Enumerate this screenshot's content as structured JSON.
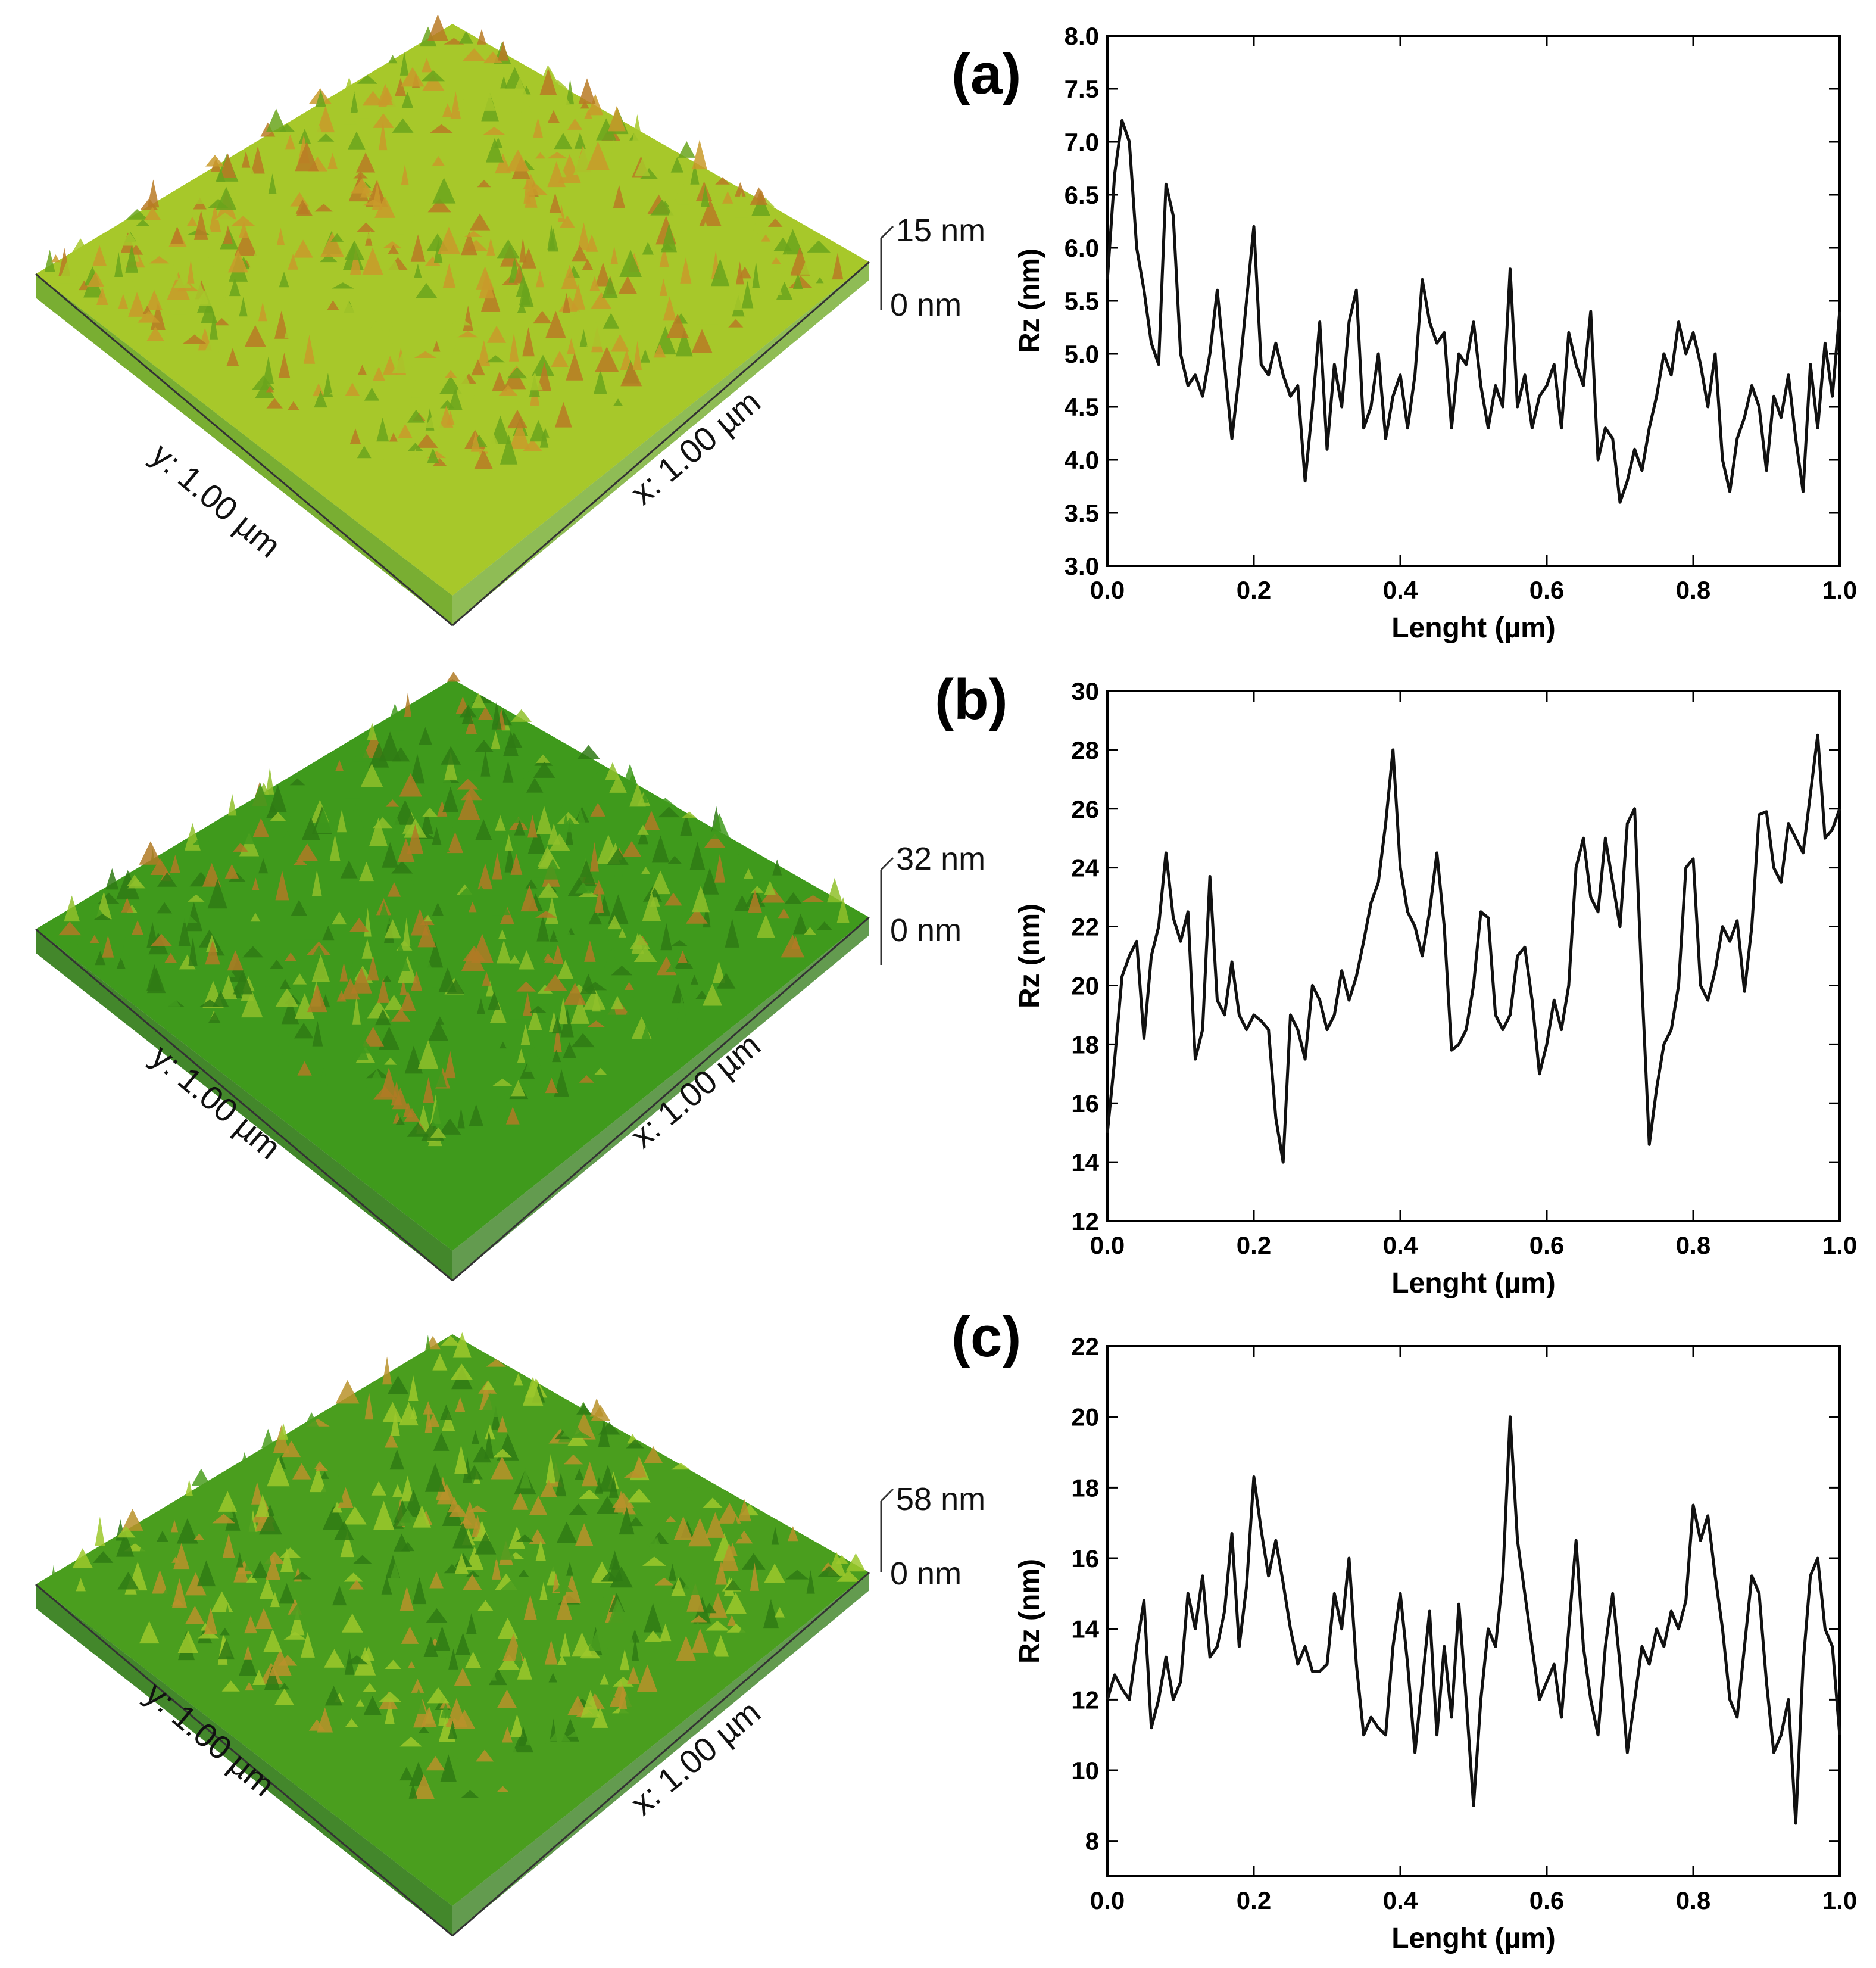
{
  "panels": [
    {
      "label": "(a)",
      "surface": {
        "z_max": "15 nm",
        "z_min": "0 nm",
        "y_label": "y: 1.00 µm",
        "x_label": "x: 1.00 µm",
        "palette": [
          "#6aa51c",
          "#a7c82a",
          "#c99a2a",
          "#b87a24"
        ]
      },
      "chart_data": {
        "type": "line",
        "xlabel": "Lenght (µm)",
        "ylabel": "Rz (nm)",
        "xlim": [
          0.0,
          1.0
        ],
        "ylim": [
          3.0,
          8.0
        ],
        "xticks": [
          "0.0",
          "0.2",
          "0.4",
          "0.6",
          "0.8",
          "1.0"
        ],
        "yticks": [
          "3.0",
          "3.5",
          "4.0",
          "4.5",
          "5.0",
          "5.5",
          "6.0",
          "6.5",
          "7.0",
          "7.5",
          "8.0"
        ],
        "x": [
          0.0,
          0.01,
          0.02,
          0.03,
          0.04,
          0.05,
          0.06,
          0.07,
          0.08,
          0.09,
          0.1,
          0.11,
          0.12,
          0.13,
          0.14,
          0.15,
          0.16,
          0.17,
          0.18,
          0.19,
          0.2,
          0.21,
          0.22,
          0.23,
          0.24,
          0.25,
          0.26,
          0.27,
          0.28,
          0.29,
          0.3,
          0.31,
          0.32,
          0.33,
          0.34,
          0.35,
          0.36,
          0.37,
          0.38,
          0.39,
          0.4,
          0.41,
          0.42,
          0.43,
          0.44,
          0.45,
          0.46,
          0.47,
          0.48,
          0.49,
          0.5,
          0.51,
          0.52,
          0.53,
          0.54,
          0.55,
          0.56,
          0.57,
          0.58,
          0.59,
          0.6,
          0.61,
          0.62,
          0.63,
          0.64,
          0.65,
          0.66,
          0.67,
          0.68,
          0.69,
          0.7,
          0.71,
          0.72,
          0.73,
          0.74,
          0.75,
          0.76,
          0.77,
          0.78,
          0.79,
          0.8,
          0.81,
          0.82,
          0.83,
          0.84,
          0.85,
          0.86,
          0.87,
          0.88,
          0.89,
          0.9,
          0.91,
          0.92,
          0.93,
          0.94,
          0.95,
          0.96,
          0.97,
          0.98,
          0.99,
          1.0
        ],
        "values": [
          5.7,
          6.7,
          7.2,
          7.0,
          6.0,
          5.6,
          5.1,
          4.9,
          6.6,
          6.3,
          5.0,
          4.7,
          4.8,
          4.6,
          5.0,
          5.6,
          4.9,
          4.2,
          4.8,
          5.5,
          6.2,
          4.9,
          4.8,
          5.1,
          4.8,
          4.6,
          4.7,
          3.8,
          4.5,
          5.3,
          4.1,
          4.9,
          4.5,
          5.3,
          5.6,
          4.3,
          4.5,
          5.0,
          4.2,
          4.6,
          4.8,
          4.3,
          4.8,
          5.7,
          5.3,
          5.1,
          5.2,
          4.3,
          5.0,
          4.9,
          5.3,
          4.7,
          4.3,
          4.7,
          4.5,
          5.8,
          4.5,
          4.8,
          4.3,
          4.6,
          4.7,
          4.9,
          4.3,
          5.2,
          4.9,
          4.7,
          5.4,
          4.0,
          4.3,
          4.2,
          3.6,
          3.8,
          4.1,
          3.9,
          4.3,
          4.6,
          5.0,
          4.8,
          5.3,
          5.0,
          5.2,
          4.9,
          4.5,
          5.0,
          4.0,
          3.7,
          4.2,
          4.4,
          4.7,
          4.5,
          3.9,
          4.6,
          4.4,
          4.8,
          4.2,
          3.7,
          4.9,
          4.3,
          5.1,
          4.6,
          5.4
        ]
      }
    },
    {
      "label": "(b)",
      "surface": {
        "z_max": "32 nm",
        "z_min": "0 nm",
        "y_label": "y: 1.00 µm",
        "x_label": "x: 1.00 µm",
        "palette": [
          "#2f7a14",
          "#3f9a1c",
          "#8fbf2a",
          "#b07a24"
        ]
      },
      "chart_data": {
        "type": "line",
        "xlabel": "Lenght (µm)",
        "ylabel": "Rz (nm)",
        "xlim": [
          0.0,
          1.0
        ],
        "ylim": [
          12,
          30
        ],
        "xticks": [
          "0.0",
          "0.2",
          "0.4",
          "0.6",
          "0.8",
          "1.0"
        ],
        "yticks": [
          "12",
          "14",
          "16",
          "18",
          "20",
          "22",
          "24",
          "26",
          "28",
          "30"
        ],
        "x": [
          0.0,
          0.01,
          0.02,
          0.03,
          0.04,
          0.05,
          0.06,
          0.07,
          0.08,
          0.09,
          0.1,
          0.11,
          0.12,
          0.13,
          0.14,
          0.15,
          0.16,
          0.17,
          0.18,
          0.19,
          0.2,
          0.21,
          0.22,
          0.23,
          0.24,
          0.25,
          0.26,
          0.27,
          0.28,
          0.29,
          0.3,
          0.31,
          0.32,
          0.33,
          0.34,
          0.35,
          0.36,
          0.37,
          0.38,
          0.39,
          0.4,
          0.41,
          0.42,
          0.43,
          0.44,
          0.45,
          0.46,
          0.47,
          0.48,
          0.49,
          0.5,
          0.51,
          0.52,
          0.53,
          0.54,
          0.55,
          0.56,
          0.57,
          0.58,
          0.59,
          0.6,
          0.61,
          0.62,
          0.63,
          0.64,
          0.65,
          0.66,
          0.67,
          0.68,
          0.69,
          0.7,
          0.71,
          0.72,
          0.73,
          0.74,
          0.75,
          0.76,
          0.77,
          0.78,
          0.79,
          0.8,
          0.81,
          0.82,
          0.83,
          0.84,
          0.85,
          0.86,
          0.87,
          0.88,
          0.89,
          0.9,
          0.91,
          0.92,
          0.93,
          0.94,
          0.95,
          0.96,
          0.97,
          0.98,
          0.99,
          1.0
        ],
        "values": [
          15.0,
          17.5,
          20.3,
          21.0,
          21.5,
          18.2,
          21.0,
          22.0,
          24.5,
          22.3,
          21.5,
          22.5,
          17.5,
          18.5,
          23.7,
          19.5,
          19.0,
          20.8,
          19.0,
          18.5,
          19.0,
          18.8,
          18.5,
          15.5,
          14.0,
          19.0,
          18.5,
          17.5,
          20.0,
          19.5,
          18.5,
          19.0,
          20.5,
          19.5,
          20.3,
          21.5,
          22.8,
          23.5,
          25.5,
          28.0,
          24.0,
          22.5,
          22.0,
          21.0,
          22.5,
          24.5,
          22.0,
          17.8,
          18.0,
          18.5,
          20.0,
          22.5,
          22.3,
          19.0,
          18.5,
          19.0,
          21.0,
          21.3,
          19.5,
          17.0,
          18.0,
          19.5,
          18.5,
          20.0,
          24.0,
          25.0,
          23.0,
          22.5,
          25.0,
          23.5,
          22.0,
          25.5,
          26.0,
          20.0,
          14.6,
          16.5,
          18.0,
          18.5,
          20.0,
          24.0,
          24.3,
          20.0,
          19.5,
          20.5,
          22.0,
          21.5,
          22.2,
          19.8,
          22.0,
          25.8,
          25.9,
          24.0,
          23.5,
          25.5,
          25.0,
          24.5,
          26.5,
          28.5,
          25.0,
          25.3,
          26.0
        ]
      }
    },
    {
      "label": "(c)",
      "surface": {
        "z_max": "58 nm",
        "z_min": "0 nm",
        "y_label": "y: 1.00 µm",
        "x_label": "x: 1.00 µm",
        "palette": [
          "#2f7a14",
          "#4a9e1e",
          "#9cc82c",
          "#b8922a"
        ]
      },
      "chart_data": {
        "type": "line",
        "xlabel": "Lenght (µm)",
        "ylabel": "Rz (nm)",
        "xlim": [
          0.0,
          1.0
        ],
        "ylim": [
          7,
          22
        ],
        "xticks": [
          "0.0",
          "0.2",
          "0.4",
          "0.6",
          "0.8",
          "1.0"
        ],
        "yticks": [
          "8",
          "10",
          "12",
          "14",
          "16",
          "18",
          "20",
          "22"
        ],
        "x": [
          0.0,
          0.01,
          0.02,
          0.03,
          0.04,
          0.05,
          0.06,
          0.07,
          0.08,
          0.09,
          0.1,
          0.11,
          0.12,
          0.13,
          0.14,
          0.15,
          0.16,
          0.17,
          0.18,
          0.19,
          0.2,
          0.21,
          0.22,
          0.23,
          0.24,
          0.25,
          0.26,
          0.27,
          0.28,
          0.29,
          0.3,
          0.31,
          0.32,
          0.33,
          0.34,
          0.35,
          0.36,
          0.37,
          0.38,
          0.39,
          0.4,
          0.41,
          0.42,
          0.43,
          0.44,
          0.45,
          0.46,
          0.47,
          0.48,
          0.49,
          0.5,
          0.51,
          0.52,
          0.53,
          0.54,
          0.55,
          0.56,
          0.57,
          0.58,
          0.59,
          0.6,
          0.61,
          0.62,
          0.63,
          0.64,
          0.65,
          0.66,
          0.67,
          0.68,
          0.69,
          0.7,
          0.71,
          0.72,
          0.73,
          0.74,
          0.75,
          0.76,
          0.77,
          0.78,
          0.79,
          0.8,
          0.81,
          0.82,
          0.83,
          0.84,
          0.85,
          0.86,
          0.87,
          0.88,
          0.89,
          0.9,
          0.91,
          0.92,
          0.93,
          0.94,
          0.95,
          0.96,
          0.97,
          0.98,
          0.99,
          1.0
        ],
        "values": [
          12.0,
          12.7,
          12.3,
          12.0,
          13.5,
          14.8,
          11.2,
          12.0,
          13.2,
          12.0,
          12.5,
          15.0,
          14.0,
          15.5,
          13.2,
          13.5,
          14.5,
          16.7,
          13.5,
          15.2,
          18.3,
          16.8,
          15.5,
          16.5,
          15.3,
          14.0,
          13.0,
          13.5,
          12.8,
          12.8,
          13.0,
          15.0,
          14.0,
          16.0,
          13.0,
          11.0,
          11.5,
          11.2,
          11.0,
          13.5,
          15.0,
          13.0,
          10.5,
          12.5,
          14.5,
          11.0,
          13.5,
          11.5,
          14.7,
          12.0,
          9.0,
          12.0,
          14.0,
          13.5,
          15.5,
          20.0,
          16.5,
          15.0,
          13.5,
          12.0,
          12.5,
          13.0,
          11.5,
          14.0,
          16.5,
          13.5,
          12.0,
          11.0,
          13.5,
          15.0,
          13.0,
          10.5,
          12.0,
          13.5,
          13.0,
          14.0,
          13.5,
          14.5,
          14.0,
          14.8,
          17.5,
          16.5,
          17.2,
          15.5,
          14.0,
          12.0,
          11.5,
          13.5,
          15.5,
          15.0,
          12.5,
          10.5,
          11.0,
          12.0,
          8.5,
          13.0,
          15.5,
          16.0,
          14.0,
          13.5,
          11.0
        ]
      }
    }
  ]
}
